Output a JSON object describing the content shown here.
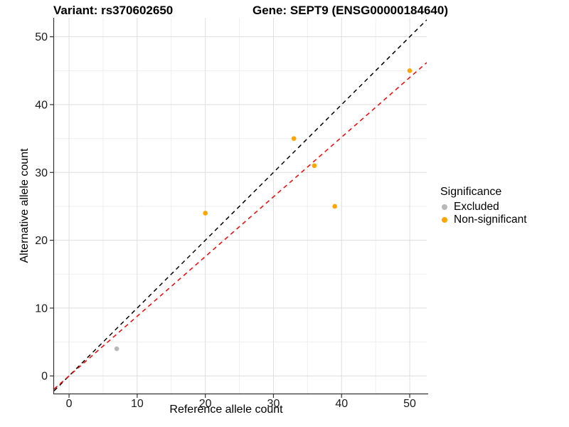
{
  "chart_data": {
    "type": "scatter",
    "title_variant": "Variant: rs370602650",
    "title_gene": "Gene: SEPT9 (ENSG00000184640)",
    "xlabel": "Reference allele count",
    "ylabel": "Alternative allele count",
    "xlim": [
      -2.2,
      52.5
    ],
    "ylim": [
      -2.6,
      52.8
    ],
    "x_ticks": [
      0,
      10,
      20,
      30,
      40,
      50
    ],
    "y_ticks": [
      0,
      10,
      20,
      30,
      40,
      50
    ],
    "x_minor_ticks": [
      5,
      15,
      25,
      35,
      45
    ],
    "y_minor_ticks": [
      5,
      15,
      25,
      35,
      45
    ],
    "grid": "major+minor",
    "series": [
      {
        "name": "Excluded",
        "color": "#B8B8B8",
        "points": [
          [
            7,
            4
          ]
        ]
      },
      {
        "name": "Non-significant",
        "color": "#FFA500",
        "points": [
          [
            20,
            24
          ],
          [
            33,
            35
          ],
          [
            36,
            31
          ],
          [
            39,
            25
          ],
          [
            50,
            45
          ]
        ]
      }
    ],
    "lines": [
      {
        "name": "identity",
        "style": "dashed",
        "color": "#000000",
        "slope": 1,
        "intercept": 0
      },
      {
        "name": "fit",
        "style": "dashed",
        "color": "#FF0000",
        "slope": 0.88,
        "intercept": 0
      }
    ],
    "legend": {
      "title": "Significance",
      "position": "right",
      "entries": [
        {
          "label": "Excluded",
          "color": "#B8B8B8"
        },
        {
          "label": "Non-significant",
          "color": "#FFA500"
        }
      ]
    },
    "colors": {
      "grid_major": "#DEDEDE",
      "grid_minor": "#EFEFEF",
      "axis": "#333333",
      "tick_text": "#1a1a1a"
    }
  }
}
